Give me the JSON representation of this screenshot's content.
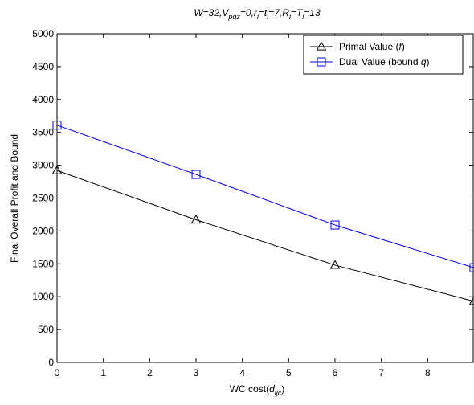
{
  "chart_data": {
    "type": "line",
    "title": {
      "parts": [
        {
          "t": "W=32,V"
        },
        {
          "t": "pqz",
          "sub": true
        },
        {
          "t": "=0,r"
        },
        {
          "t": "i",
          "sub": true
        },
        {
          "t": "=t"
        },
        {
          "t": "i",
          "sub": true
        },
        {
          "t": "=7,R"
        },
        {
          "t": "i",
          "sub": true
        },
        {
          "t": "=T"
        },
        {
          "t": "i",
          "sub": true
        },
        {
          "t": "=13"
        }
      ]
    },
    "xlabel": {
      "parts": [
        {
          "t": "WC cost("
        },
        {
          "t": "d",
          "italic": true
        },
        {
          "t": "ijc",
          "sub": true,
          "italic": true
        },
        {
          "t": ")"
        }
      ]
    },
    "ylabel": "Final Overall Profit and Bound",
    "xlim": [
      0,
      9
    ],
    "ylim": [
      0,
      5000
    ],
    "xticks": [
      0,
      1,
      2,
      3,
      4,
      5,
      6,
      7,
      8
    ],
    "yticks": [
      0,
      500,
      1000,
      1500,
      2000,
      2500,
      3000,
      3500,
      4000,
      4500,
      5000
    ],
    "grid": false,
    "legend_position": "top-right",
    "series": [
      {
        "name": "Primal Value (f)",
        "legend_parts": [
          {
            "t": "Primal Value ("
          },
          {
            "t": "f",
            "italic": true
          },
          {
            "t": ")"
          }
        ],
        "color": "#000000",
        "marker": "triangle",
        "x": [
          0,
          3,
          6,
          9
        ],
        "y": [
          2920,
          2170,
          1480,
          930
        ]
      },
      {
        "name": "Dual Value (bound q)",
        "legend_parts": [
          {
            "t": "Dual Value (bound "
          },
          {
            "t": "q",
            "italic": true
          },
          {
            "t": ")"
          }
        ],
        "color": "#0000ff",
        "marker": "square",
        "x": [
          0,
          3,
          6,
          9
        ],
        "y": [
          3610,
          2860,
          2090,
          1440
        ]
      }
    ]
  }
}
